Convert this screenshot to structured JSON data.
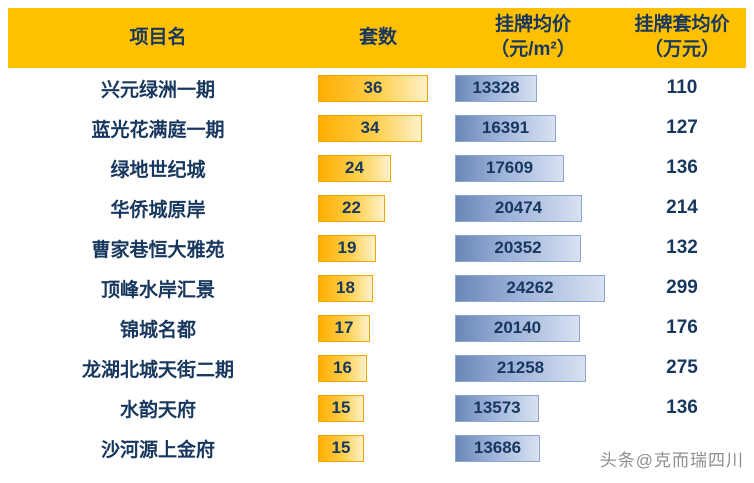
{
  "header": {
    "col1": "项目名",
    "col2": "套数",
    "col3_line1": "挂牌均价",
    "col3_line2": "（元/m²）",
    "col4_line1": "挂牌套均价",
    "col4_line2": "（万元）"
  },
  "watermark": "头条@克而瑞四川",
  "colors": {
    "header_bg": "#FFC000",
    "header_text": "#17375E",
    "row_text": "#17375E",
    "orange_bar_start": "#FFAE00",
    "orange_bar_end": "#FFF1C9",
    "orange_bar_border": "#F0A500",
    "blue_bar_start": "#6A87B8",
    "blue_bar_end": "#D8E1F1",
    "blue_bar_border": "#8FA6CC",
    "watermark_text": "#8F8F8F"
  },
  "chart_data": {
    "type": "table",
    "title": "",
    "columns": [
      "项目名",
      "套数",
      "挂牌均价（元/m²）",
      "挂牌套均价（万元）"
    ],
    "bar_columns": [
      "套数",
      "挂牌均价（元/m²）"
    ],
    "bar_scales": {
      "units_max": 36,
      "price_max": 24262
    },
    "rows": [
      [
        "兴元绿洲一期",
        36,
        13328,
        110
      ],
      [
        "蓝光花满庭一期",
        34,
        16391,
        127
      ],
      [
        "绿地世纪城",
        24,
        17609,
        136
      ],
      [
        "华侨城原岸",
        22,
        20474,
        214
      ],
      [
        "曹家巷恒大雅苑",
        19,
        20352,
        132
      ],
      [
        "顶峰水岸汇景",
        18,
        24262,
        299
      ],
      [
        "锦城名都",
        17,
        20140,
        176
      ],
      [
        "龙湖北城天街二期",
        16,
        21258,
        275
      ],
      [
        "水韵天府",
        15,
        13573,
        136
      ],
      [
        "沙河源上金府",
        15,
        13686,
        null
      ]
    ]
  }
}
